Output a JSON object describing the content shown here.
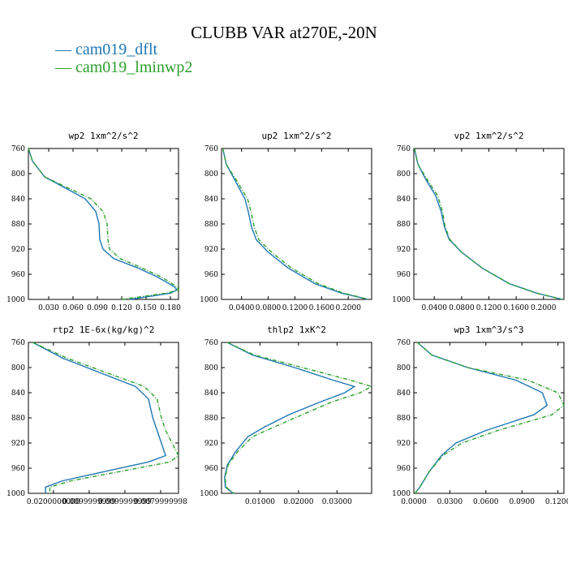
{
  "title": "CLUBB VAR at270E,-20N",
  "legend": [
    {
      "name": "cam019_dflt",
      "color": "#1f77b4"
    },
    {
      "name": "cam019_lminwp2",
      "color": "#2ca02c"
    }
  ],
  "chart_data": [
    {
      "type": "line",
      "title": "wp2  1xm^2/s^2",
      "ylim": [
        760,
        1000
      ],
      "xlim": [
        0.005,
        0.19
      ],
      "yticks": [
        "760",
        "800",
        "840",
        "880",
        "920",
        "960",
        "1000"
      ],
      "xticks": [
        "0.030",
        "0.060",
        "0.090",
        "0.120",
        "0.150",
        "0.180"
      ],
      "y": [
        755,
        780,
        805,
        840,
        860,
        880,
        905,
        920,
        935,
        950,
        965,
        980,
        985,
        990,
        1000
      ],
      "series": [
        {
          "name": "cam019_dflt",
          "x": [
            0.005,
            0.01,
            0.025,
            0.075,
            0.088,
            0.092,
            0.093,
            0.097,
            0.11,
            0.14,
            0.165,
            0.185,
            0.188,
            0.18,
            0.13
          ]
        },
        {
          "name": "cam019_lminwp2",
          "x": [
            0.005,
            0.01,
            0.025,
            0.082,
            0.097,
            0.102,
            0.103,
            0.105,
            0.118,
            0.145,
            0.17,
            0.188,
            0.19,
            0.175,
            0.12
          ]
        }
      ]
    },
    {
      "type": "line",
      "title": "up2  1xm^2/s^2",
      "ylim": [
        760,
        1000
      ],
      "xlim": [
        0.01,
        0.235
      ],
      "yticks": [
        "760",
        "800",
        "840",
        "880",
        "920",
        "960",
        "1000"
      ],
      "xticks": [
        "0.0400",
        "0.0800",
        "0.1200",
        "0.1600",
        "0.2000"
      ],
      "y": [
        755,
        785,
        810,
        840,
        860,
        885,
        905,
        925,
        950,
        975,
        990,
        1000
      ],
      "series": [
        {
          "name": "cam019_dflt",
          "x": [
            0.012,
            0.017,
            0.03,
            0.045,
            0.05,
            0.055,
            0.062,
            0.08,
            0.11,
            0.15,
            0.19,
            0.23
          ]
        },
        {
          "name": "cam019_lminwp2",
          "x": [
            0.012,
            0.017,
            0.032,
            0.049,
            0.054,
            0.059,
            0.066,
            0.085,
            0.115,
            0.155,
            0.193,
            0.231
          ]
        }
      ]
    },
    {
      "type": "line",
      "title": "vp2  1xm^2/s^2",
      "ylim": [
        760,
        1000
      ],
      "xlim": [
        0.01,
        0.23
      ],
      "yticks": [
        "760",
        "800",
        "840",
        "880",
        "920",
        "960",
        "1000"
      ],
      "xticks": [
        "0.0400",
        "0.0800",
        "0.1200",
        "0.1600",
        "0.2000"
      ],
      "y": [
        755,
        785,
        810,
        835,
        860,
        885,
        905,
        925,
        950,
        975,
        990,
        1000
      ],
      "series": [
        {
          "name": "cam019_dflt",
          "x": [
            0.011,
            0.016,
            0.028,
            0.042,
            0.05,
            0.055,
            0.062,
            0.08,
            0.11,
            0.15,
            0.19,
            0.228
          ]
        },
        {
          "name": "cam019_lminwp2",
          "x": [
            0.011,
            0.016,
            0.03,
            0.045,
            0.052,
            0.056,
            0.063,
            0.08,
            0.11,
            0.15,
            0.19,
            0.228
          ]
        }
      ]
    },
    {
      "type": "line",
      "title": "rtp2  1E-6x(kg/kg)^2",
      "ylim": [
        760,
        1000
      ],
      "xlim": [
        5e-06,
        8.5e-06
      ],
      "yticks": [
        "760",
        "800",
        "840",
        "880",
        "920",
        "960",
        "1000"
      ],
      "xticks": [
        "0.0200000000",
        "0.0099999999",
        "0.0099999999",
        "0.0079999998"
      ],
      "y": [
        755,
        785,
        830,
        850,
        880,
        900,
        940,
        950,
        980,
        990,
        995,
        1000
      ],
      "series": [
        {
          "name": "cam019_dflt",
          "x": [
            5.1e-06,
            5.8e-06,
            7.5e-06,
            7.8e-06,
            7.9e-06,
            8e-06,
            8.2e-06,
            7.8e-06,
            5.8e-06,
            5.4e-06,
            5.4e-06,
            5.4e-06
          ]
        },
        {
          "name": "cam019_lminwp2",
          "x": [
            5.1e-06,
            5.9e-06,
            7.7e-06,
            8e-06,
            8.1e-06,
            8.2e-06,
            8.5e-06,
            8.3e-06,
            6e-06,
            5.5e-06,
            5.5e-06,
            5.5e-06
          ]
        }
      ]
    },
    {
      "type": "line",
      "title": "thlp2  1xK^2",
      "ylim": [
        760,
        1000
      ],
      "xlim": [
        0.0,
        0.039
      ],
      "yticks": [
        "760",
        "800",
        "840",
        "880",
        "920",
        "960",
        "1000"
      ],
      "xticks": [
        "0.01000",
        "0.02000",
        "0.03000"
      ],
      "y": [
        755,
        780,
        800,
        820,
        830,
        840,
        855,
        875,
        895,
        910,
        935,
        955,
        975,
        990,
        1000
      ],
      "series": [
        {
          "name": "cam019_dflt",
          "x": [
            0.0015,
            0.008,
            0.019,
            0.029,
            0.0345,
            0.032,
            0.0255,
            0.0175,
            0.011,
            0.0068,
            0.0035,
            0.0015,
            0.0008,
            0.001,
            0.003
          ]
        },
        {
          "name": "cam019_lminwp2",
          "x": [
            0.0015,
            0.0085,
            0.021,
            0.0335,
            0.0392,
            0.036,
            0.0285,
            0.021,
            0.0135,
            0.008,
            0.004,
            0.0017,
            0.0009,
            0.0012,
            0.0032
          ]
        }
      ]
    },
    {
      "type": "line",
      "title": "wp3  1xm^3/s^3",
      "ylim": [
        760,
        1000
      ],
      "xlim": [
        0.0,
        0.125
      ],
      "yticks": [
        "760",
        "800",
        "840",
        "880",
        "920",
        "960",
        "1000"
      ],
      "xticks": [
        "0.0000",
        "0.0300",
        "0.0600",
        "0.0900",
        "0.1200"
      ],
      "y": [
        755,
        780,
        800,
        820,
        840,
        860,
        875,
        900,
        920,
        940,
        965,
        990,
        1000
      ],
      "series": [
        {
          "name": "cam019_dflt",
          "x": [
            0.003,
            0.015,
            0.045,
            0.085,
            0.107,
            0.111,
            0.1,
            0.06,
            0.035,
            0.023,
            0.013,
            0.005,
            0.001
          ]
        },
        {
          "name": "cam019_lminwp2",
          "x": [
            0.003,
            0.015,
            0.045,
            0.095,
            0.12,
            0.125,
            0.115,
            0.07,
            0.04,
            0.024,
            0.013,
            0.005,
            0.001
          ]
        }
      ]
    }
  ]
}
